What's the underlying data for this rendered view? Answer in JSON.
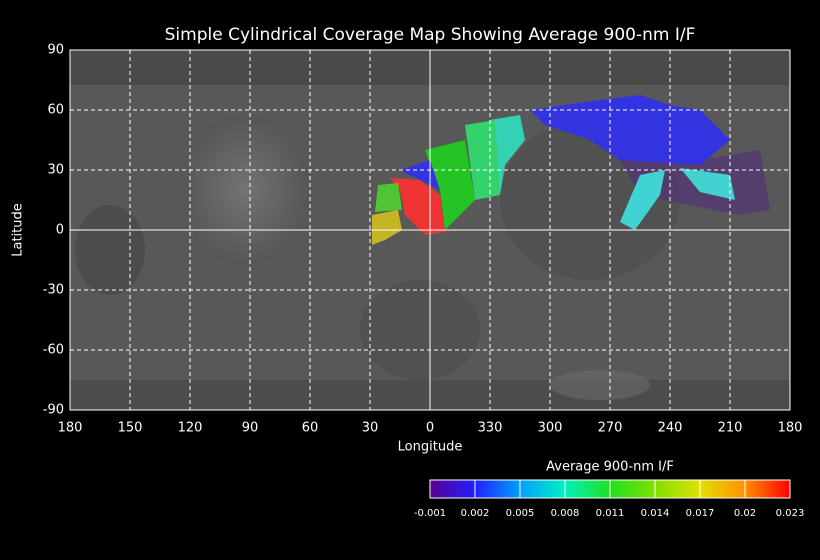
{
  "chart_data": {
    "type": "map",
    "title": "Simple Cylindrical Coverage Map Showing Average 900-nm I/F",
    "x_label": "Longitude",
    "y_label": "Latitude",
    "xlim": [
      180,
      -180
    ],
    "xticks": [
      180,
      150,
      120,
      90,
      60,
      30,
      0,
      {
        "value": -30,
        "label": "330"
      },
      {
        "value": -60,
        "label": "300"
      },
      {
        "value": -90,
        "label": "270"
      },
      {
        "value": -120,
        "label": "240"
      },
      {
        "value": -150,
        "label": "210"
      },
      {
        "value": -180,
        "label": "180"
      }
    ],
    "ylim": [
      -90,
      90
    ],
    "yticks": [
      90,
      60,
      30,
      0,
      -30,
      -60,
      -90
    ],
    "grid": true,
    "colorbar": {
      "label": "Average 900-nm I/F",
      "lim": [
        -0.001,
        0.023
      ],
      "ticks": [
        -0.001,
        0.002,
        0.005,
        0.008,
        0.011,
        0.014,
        0.017,
        0.02,
        0.023
      ],
      "colors": [
        "#5a0090",
        "#2020ff",
        "#00a0ff",
        "#00f0c0",
        "#20e020",
        "#80e000",
        "#e0e000",
        "#ff9000",
        "#ff0000"
      ]
    }
  }
}
